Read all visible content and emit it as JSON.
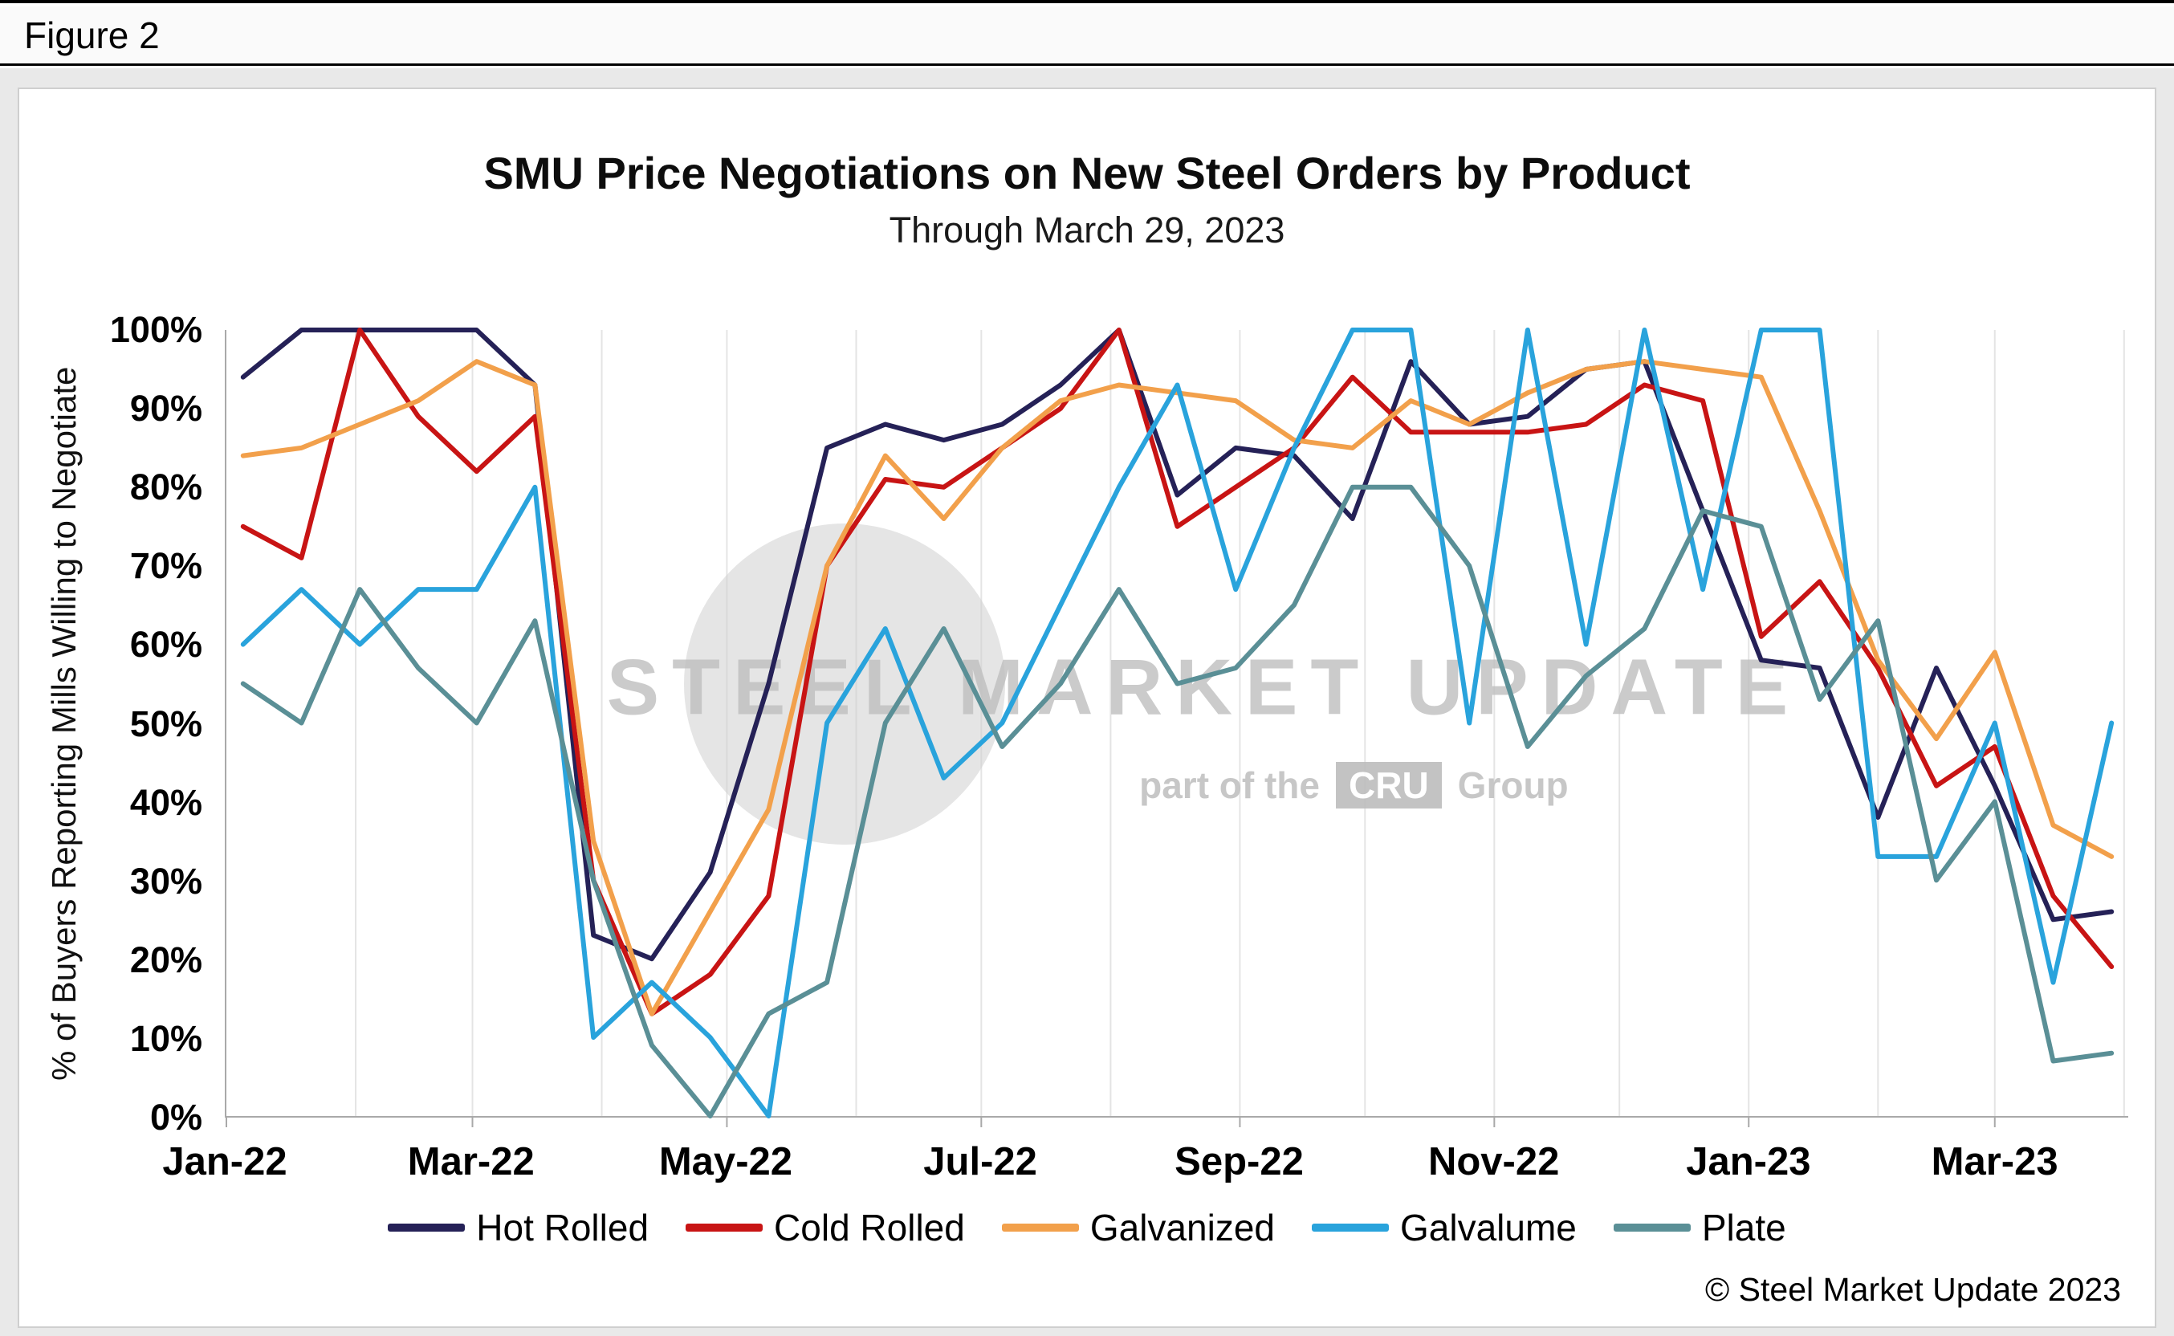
{
  "figure_label": "Figure 2",
  "title": "SMU Price Negotiations on New Steel Orders by Product",
  "subtitle": "Through March 29, 2023",
  "copyright_text": "© Steel Market Update 2023",
  "watermark": {
    "text": "STEEL MARKET UPDATE",
    "part_text": "part of the",
    "cru": "CRU",
    "group_text": "Group"
  },
  "chart_data": {
    "type": "line",
    "title": "SMU Price Negotiations on New Steel Orders by Product",
    "subtitle": "Through March 29, 2023",
    "ylabel": "% of Buyers Reporting Mills Willing to Negotiate",
    "ylim": [
      0,
      100
    ],
    "grid": "vertical-monthly",
    "legend_position": "bottom",
    "y_ticks": [
      {
        "label": "0%",
        "value": 0
      },
      {
        "label": "10%",
        "value": 10
      },
      {
        "label": "20%",
        "value": 20
      },
      {
        "label": "30%",
        "value": 30
      },
      {
        "label": "40%",
        "value": 40
      },
      {
        "label": "50%",
        "value": 50
      },
      {
        "label": "60%",
        "value": 60
      },
      {
        "label": "70%",
        "value": 70
      },
      {
        "label": "80%",
        "value": 80
      },
      {
        "label": "90%",
        "value": 90
      },
      {
        "label": "100%",
        "value": 100
      }
    ],
    "x_domain": [
      "2022-01-01",
      "2023-04-02"
    ],
    "x_tick_labels": [
      {
        "label": "Jan-22",
        "date": "2022-01-01"
      },
      {
        "label": "Mar-22",
        "date": "2022-03-01"
      },
      {
        "label": "May-22",
        "date": "2022-05-01"
      },
      {
        "label": "Jul-22",
        "date": "2022-07-01"
      },
      {
        "label": "Sep-22",
        "date": "2022-09-01"
      },
      {
        "label": "Nov-22",
        "date": "2022-11-01"
      },
      {
        "label": "Jan-23",
        "date": "2023-01-01"
      },
      {
        "label": "Mar-23",
        "date": "2023-03-01"
      }
    ],
    "x": [
      "2022-01-05",
      "2022-01-19",
      "2022-02-02",
      "2022-02-16",
      "2022-03-02",
      "2022-03-16",
      "2022-03-30",
      "2022-04-13",
      "2022-04-27",
      "2022-05-11",
      "2022-05-25",
      "2022-06-08",
      "2022-06-22",
      "2022-07-06",
      "2022-07-20",
      "2022-08-03",
      "2022-08-17",
      "2022-08-31",
      "2022-09-14",
      "2022-09-28",
      "2022-10-12",
      "2022-10-26",
      "2022-11-09",
      "2022-11-23",
      "2022-12-07",
      "2022-12-21",
      "2023-01-04",
      "2023-01-18",
      "2023-02-01",
      "2023-02-15",
      "2023-03-01",
      "2023-03-15",
      "2023-03-29"
    ],
    "series": [
      {
        "name": "Hot Rolled",
        "color": "#252157",
        "values": [
          94,
          100,
          100,
          100,
          100,
          93,
          23,
          20,
          31,
          55,
          85,
          88,
          86,
          88,
          93,
          100,
          79,
          85,
          84,
          76,
          96,
          88,
          89,
          95,
          96,
          77,
          58,
          57,
          38,
          57,
          42,
          25,
          26
        ]
      },
      {
        "name": "Cold Rolled",
        "color": "#c81414",
        "values": [
          75,
          71,
          100,
          89,
          82,
          89,
          30,
          13,
          18,
          28,
          70,
          81,
          80,
          85,
          90,
          100,
          75,
          80,
          85,
          94,
          87,
          87,
          87,
          88,
          93,
          91,
          61,
          68,
          57,
          42,
          47,
          28,
          19
        ]
      },
      {
        "name": "Galvanized",
        "color": "#f2a04b",
        "values": [
          84,
          85,
          88,
          91,
          96,
          93,
          35,
          13,
          26,
          39,
          70,
          84,
          76,
          85,
          91,
          93,
          92,
          91,
          86,
          85,
          91,
          88,
          92,
          95,
          96,
          95,
          94,
          77,
          58,
          48,
          59,
          37,
          33
        ]
      },
      {
        "name": "Galvalume",
        "color": "#29a3dc",
        "values": [
          60,
          67,
          60,
          67,
          67,
          80,
          10,
          17,
          10,
          0,
          50,
          62,
          43,
          50,
          65,
          80,
          93,
          67,
          85,
          100,
          100,
          50,
          100,
          60,
          100,
          67,
          100,
          100,
          33,
          33,
          50,
          17,
          50
        ]
      },
      {
        "name": "Plate",
        "color": "#5a8f96",
        "values": [
          55,
          50,
          67,
          57,
          50,
          63,
          30,
          9,
          0,
          13,
          17,
          50,
          62,
          47,
          55,
          67,
          55,
          57,
          65,
          80,
          80,
          70,
          47,
          56,
          62,
          77,
          75,
          53,
          63,
          30,
          40,
          7,
          8
        ]
      }
    ]
  }
}
